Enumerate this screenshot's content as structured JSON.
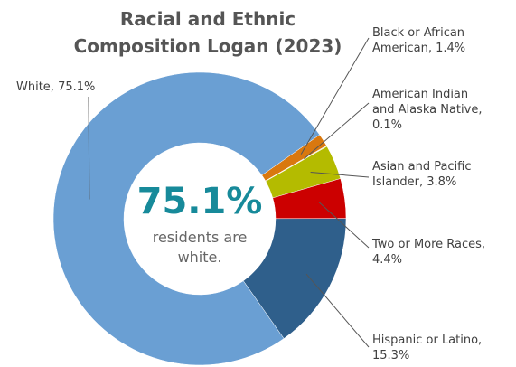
{
  "chart_data": {
    "type": "pie",
    "title": "Racial and Ethnic Composition Logan (2023)",
    "values": [
      75.1,
      1.4,
      0.1,
      3.8,
      4.4,
      15.3
    ],
    "value_labels": [
      "White, 75.1%",
      "Black or African American, 1.4%",
      "American Indian and Alaska Native, 0.1%",
      "Asian and Pacific Islander, 3.8%",
      "Two or More Races, 4.4%",
      "Hispanic or Latino, 15.3%"
    ],
    "colors": [
      "#6a9fd3",
      "#d9780f",
      "#efe6c4",
      "#b4bb00",
      "#cc0000",
      "#2f5f8b"
    ],
    "center_value": "75.1%",
    "center_text": "residents are white."
  }
}
